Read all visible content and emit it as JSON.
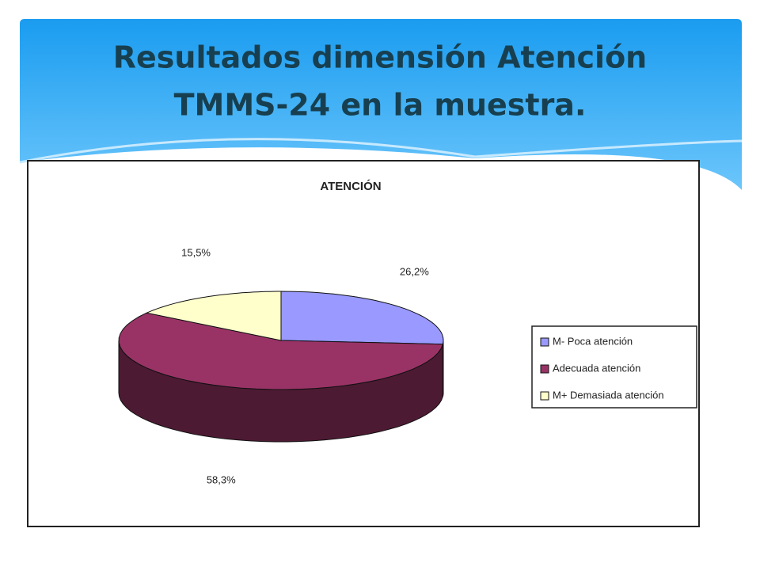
{
  "slide": {
    "title_lines": [
      "Resultados dimensión Atención",
      "TMMS-24 en la muestra."
    ]
  },
  "chart_data": {
    "type": "pie",
    "three_d": true,
    "title": "ATENCIÓN",
    "categories": [
      "M- Poca atención",
      "Adecuada atención",
      "M+ Demasiada atención"
    ],
    "values": [
      26.2,
      58.3,
      15.5
    ],
    "value_labels": [
      "26,2%",
      "58,3%",
      "15,5%"
    ],
    "colors": [
      "#9999ff",
      "#993366",
      "#ffffcc"
    ],
    "legend": "right"
  }
}
